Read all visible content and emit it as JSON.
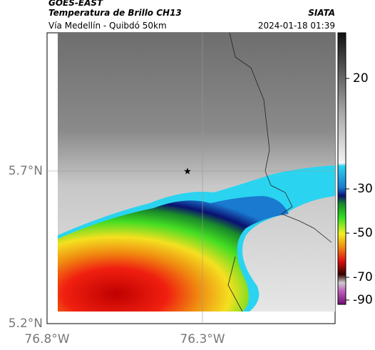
{
  "header": {
    "satellite": "GOES-EAST",
    "title": "Temperatura de Brillo CH13",
    "subtitle": "Vía Medellín - Quibdó 50km",
    "source": "SIATA",
    "timestamp": "2024-01-18 01:39"
  },
  "axes": {
    "lat_labels": [
      "5.7°N",
      "5.2°N"
    ],
    "lon_labels": [
      "76.8°W",
      "76.3°W"
    ]
  },
  "colorbar": {
    "ticks": [
      20,
      -30,
      -50,
      -70,
      -90
    ]
  }
}
